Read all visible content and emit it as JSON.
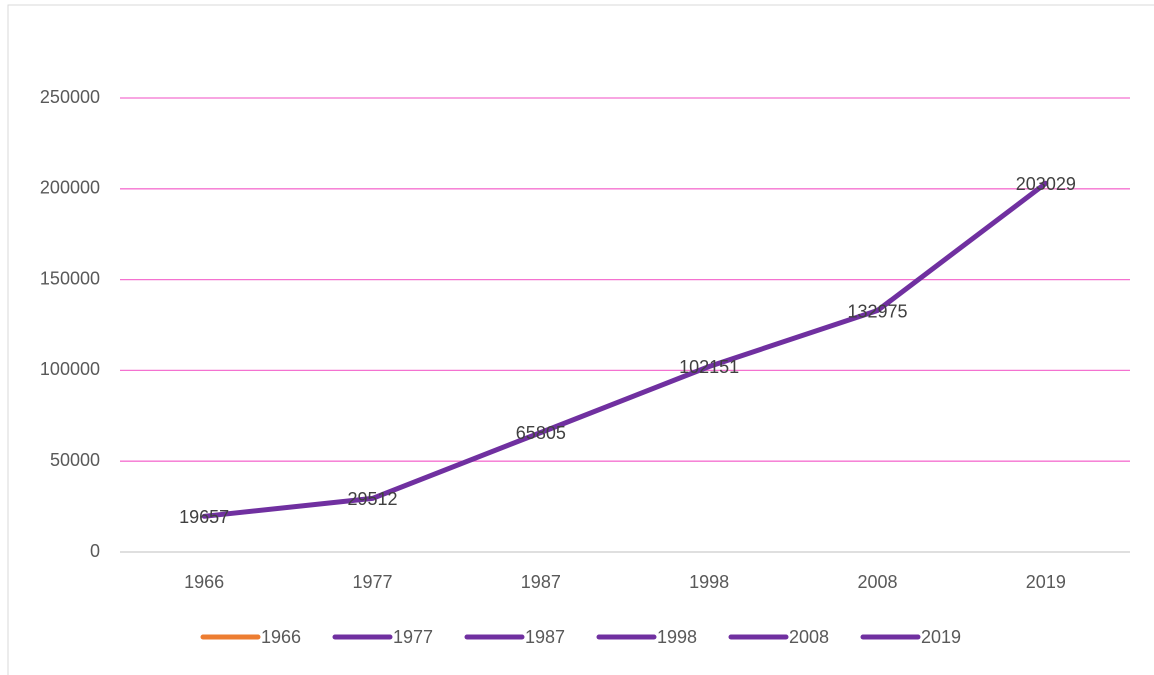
{
  "chart_data": {
    "type": "line",
    "categories": [
      "1966",
      "1977",
      "1987",
      "1998",
      "2008",
      "2019"
    ],
    "values": [
      19657,
      29512,
      65805,
      102151,
      132975,
      203029
    ],
    "point_colors": [
      "#ed7d31",
      "#7030a0",
      "#7030a0",
      "#7030a0",
      "#7030a0",
      "#7030a0"
    ],
    "line_color": "#7030a0",
    "ylim": [
      0,
      250000
    ],
    "yticks": [
      0,
      50000,
      100000,
      150000,
      200000,
      250000
    ],
    "grid": true,
    "grid_color": "#f472d0",
    "legend": "bottom"
  }
}
